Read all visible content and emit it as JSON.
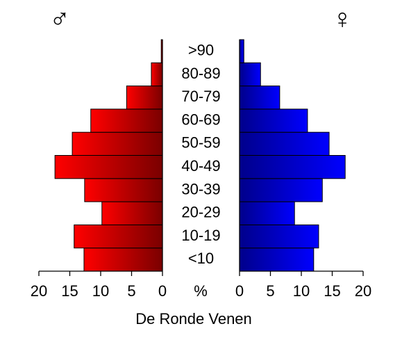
{
  "chart_data": {
    "type": "pyramid",
    "xlabel": "De Ronde Venen",
    "unit_label": "%",
    "categories": [
      "<10",
      "10-19",
      "20-29",
      "30-39",
      "40-49",
      "50-59",
      "60-69",
      "70-79",
      "80-89",
      ">90"
    ],
    "series": [
      {
        "name": "♂",
        "side": "left",
        "colors": [
          "#ff0000",
          "#7a0000"
        ],
        "values": [
          12.7,
          14.3,
          9.8,
          12.6,
          17.4,
          14.6,
          11.6,
          5.8,
          1.8,
          0.2
        ]
      },
      {
        "name": "♀",
        "side": "right",
        "colors": [
          "#00008b",
          "#0000ff"
        ],
        "values": [
          12.0,
          12.8,
          8.9,
          13.4,
          17.1,
          14.5,
          11.0,
          6.5,
          3.4,
          0.7
        ]
      }
    ],
    "xlim": [
      0,
      20
    ],
    "xticks": [
      0,
      5,
      10,
      15,
      20
    ]
  }
}
